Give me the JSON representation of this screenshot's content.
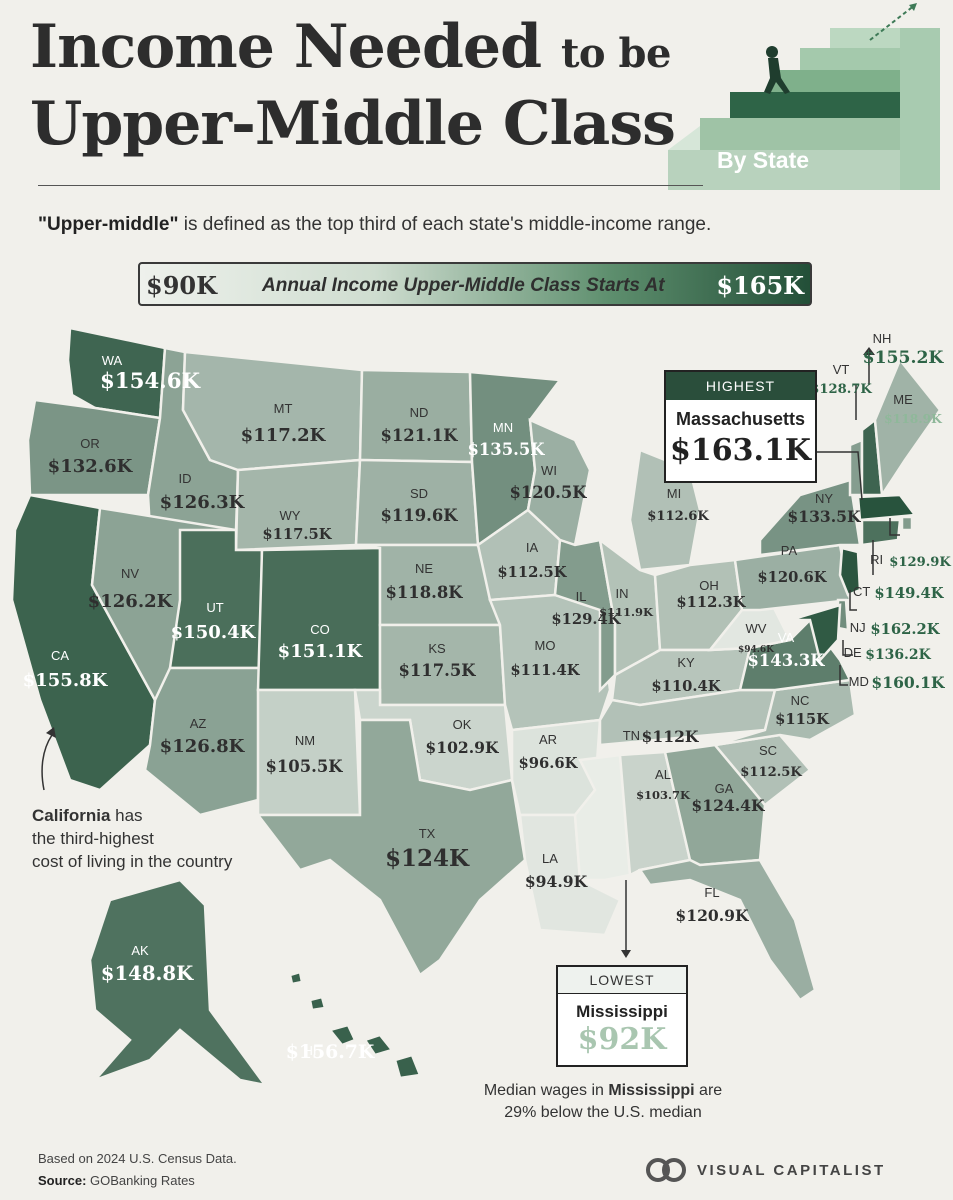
{
  "header": {
    "title_line1_big": "Income Needed",
    "title_line1_small": "to be",
    "title_line2": "Upper-Middle Class",
    "badge": "By State",
    "subtitle_bold": "\"Upper-middle\"",
    "subtitle_rest": " is defined as the top third of each state's middle-income range."
  },
  "legend": {
    "low": "$90K",
    "label": "Annual Income Upper-Middle Class Starts At",
    "high": "$165K",
    "color_low": "#eef1ec",
    "color_high": "#234f38"
  },
  "states": [
    {
      "abbr": "WA",
      "value": "$154.6K",
      "amount": 154.6
    },
    {
      "abbr": "OR",
      "value": "$132.6K",
      "amount": 132.6
    },
    {
      "abbr": "CA",
      "value": "$155.8K",
      "amount": 155.8
    },
    {
      "abbr": "ID",
      "value": "$126.3K",
      "amount": 126.3
    },
    {
      "abbr": "NV",
      "value": "$126.2K",
      "amount": 126.2
    },
    {
      "abbr": "MT",
      "value": "$117.2K",
      "amount": 117.2
    },
    {
      "abbr": "WY",
      "value": "$117.5K",
      "amount": 117.5
    },
    {
      "abbr": "UT",
      "value": "$150.4K",
      "amount": 150.4
    },
    {
      "abbr": "AZ",
      "value": "$126.8K",
      "amount": 126.8
    },
    {
      "abbr": "CO",
      "value": "$151.1K",
      "amount": 151.1
    },
    {
      "abbr": "NM",
      "value": "$105.5K",
      "amount": 105.5
    },
    {
      "abbr": "ND",
      "value": "$121.1K",
      "amount": 121.1
    },
    {
      "abbr": "SD",
      "value": "$119.6K",
      "amount": 119.6
    },
    {
      "abbr": "NE",
      "value": "$118.8K",
      "amount": 118.8
    },
    {
      "abbr": "KS",
      "value": "$117.5K",
      "amount": 117.5
    },
    {
      "abbr": "OK",
      "value": "$102.9K",
      "amount": 102.9
    },
    {
      "abbr": "TX",
      "value": "$124K",
      "amount": 124.0
    },
    {
      "abbr": "MN",
      "value": "$135.5K",
      "amount": 135.5
    },
    {
      "abbr": "IA",
      "value": "$112.5K",
      "amount": 112.5
    },
    {
      "abbr": "MO",
      "value": "$111.4K",
      "amount": 111.4
    },
    {
      "abbr": "AR",
      "value": "$96.6K",
      "amount": 96.6
    },
    {
      "abbr": "LA",
      "value": "$94.9K",
      "amount": 94.9
    },
    {
      "abbr": "WI",
      "value": "$120.5K",
      "amount": 120.5
    },
    {
      "abbr": "IL",
      "value": "$129.4K",
      "amount": 129.4
    },
    {
      "abbr": "MI",
      "value": "$112.6K",
      "amount": 112.6
    },
    {
      "abbr": "IN",
      "value": "$111.9K",
      "amount": 111.9
    },
    {
      "abbr": "OH",
      "value": "$112.3K",
      "amount": 112.3
    },
    {
      "abbr": "KY",
      "value": "$110.4K",
      "amount": 110.4
    },
    {
      "abbr": "TN",
      "value": "$112K",
      "amount": 112.0
    },
    {
      "abbr": "MS",
      "value": "$92K",
      "amount": 92.0
    },
    {
      "abbr": "AL",
      "value": "$103.7K",
      "amount": 103.7
    },
    {
      "abbr": "GA",
      "value": "$124.4K",
      "amount": 124.4
    },
    {
      "abbr": "FL",
      "value": "$120.9K",
      "amount": 120.9
    },
    {
      "abbr": "SC",
      "value": "$112.5K",
      "amount": 112.5
    },
    {
      "abbr": "NC",
      "value": "$115K",
      "amount": 115.0
    },
    {
      "abbr": "VA",
      "value": "$143.3K",
      "amount": 143.3
    },
    {
      "abbr": "WV",
      "value": "$94.6K",
      "amount": 94.6
    },
    {
      "abbr": "PA",
      "value": "$120.6K",
      "amount": 120.6
    },
    {
      "abbr": "NY",
      "value": "$133.5K",
      "amount": 133.5
    },
    {
      "abbr": "VT",
      "value": "$128.7K",
      "amount": 128.7
    },
    {
      "abbr": "NH",
      "value": "$155.2K",
      "amount": 155.2
    },
    {
      "abbr": "ME",
      "value": "$118.9K",
      "amount": 118.9
    },
    {
      "abbr": "MA",
      "value": "$163.1K",
      "amount": 163.1
    },
    {
      "abbr": "RI",
      "value": "$129.9K",
      "amount": 129.9
    },
    {
      "abbr": "CT",
      "value": "$149.4K",
      "amount": 149.4
    },
    {
      "abbr": "NJ",
      "value": "$162.2K",
      "amount": 162.2
    },
    {
      "abbr": "DE",
      "value": "$136.2K",
      "amount": 136.2
    },
    {
      "abbr": "MD",
      "value": "$160.1K",
      "amount": 160.1
    },
    {
      "abbr": "AK",
      "value": "$148.8K",
      "amount": 148.8
    },
    {
      "abbr": "HI",
      "value": "$156.7K",
      "amount": 156.7
    }
  ],
  "highest": {
    "header": "HIGHEST",
    "name": "Massachusetts",
    "value": "$163.1K"
  },
  "lowest": {
    "header": "LOWEST",
    "name": "Mississippi",
    "value": "$92K"
  },
  "notes": {
    "california_bold": "California",
    "california_line1_rest": " has",
    "california_line2": "the third-highest",
    "california_line3": "cost of living in the country",
    "mississippi_pre": "Median wages in ",
    "mississippi_bold": "Mississippi",
    "mississippi_post": " are",
    "mississippi_line2": "29% below the U.S. median"
  },
  "footer": {
    "line1": "Based on 2024 U.S. Census Data.",
    "source_label": "Source:",
    "source_value": " GOBanking Rates",
    "brand": "VISUAL CAPITALIST"
  }
}
